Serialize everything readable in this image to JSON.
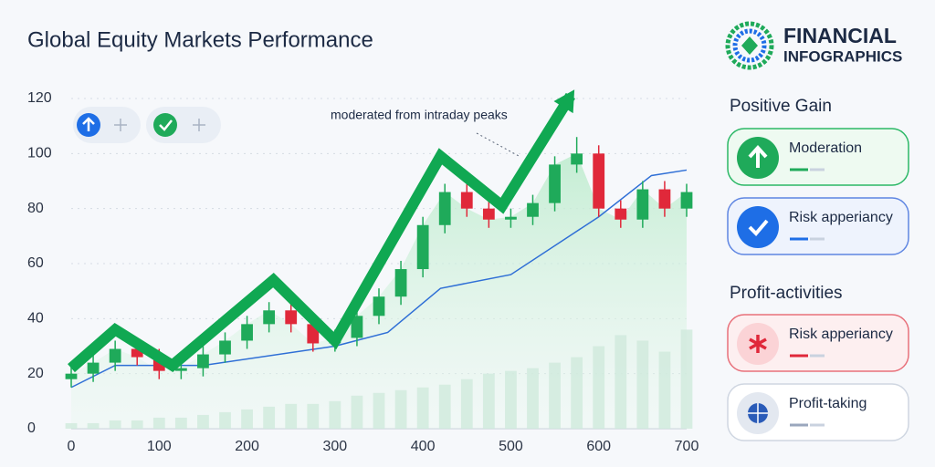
{
  "chart_data": {
    "type": "candlestick",
    "title": "Global Equity Markets Performance",
    "annotation": "moderated from intraday peaks",
    "x": [
      0,
      25,
      50,
      75,
      100,
      125,
      150,
      175,
      200,
      225,
      250,
      275,
      300,
      325,
      350,
      375,
      400,
      425,
      450,
      475,
      500,
      525,
      550,
      575,
      600,
      625,
      650,
      675,
      700
    ],
    "open": [
      18,
      20,
      24,
      29,
      26,
      21,
      22,
      27,
      32,
      38,
      43,
      38,
      31,
      33,
      41,
      48,
      58,
      74,
      86,
      80,
      76,
      77,
      82,
      96,
      100,
      80,
      76,
      87,
      80
    ],
    "high": [
      23,
      27,
      32,
      32,
      29,
      25,
      30,
      35,
      41,
      46,
      46,
      41,
      36,
      44,
      51,
      61,
      77,
      89,
      89,
      83,
      80,
      85,
      99,
      106,
      103,
      83,
      90,
      90,
      89
    ],
    "low": [
      15,
      17,
      21,
      23,
      18,
      18,
      19,
      24,
      29,
      35,
      35,
      28,
      28,
      30,
      38,
      45,
      55,
      71,
      77,
      73,
      73,
      74,
      79,
      93,
      77,
      73,
      73,
      77,
      77
    ],
    "close": [
      20,
      24,
      29,
      26,
      21,
      22,
      27,
      32,
      38,
      43,
      38,
      31,
      33,
      41,
      48,
      58,
      74,
      86,
      80,
      76,
      77,
      82,
      96,
      100,
      80,
      76,
      87,
      80,
      86
    ],
    "volume": [
      2,
      2,
      3,
      3,
      4,
      4,
      5,
      6,
      7,
      8,
      9,
      9,
      10,
      12,
      13,
      14,
      15,
      16,
      18,
      20,
      21,
      22,
      24,
      26,
      30,
      34,
      32,
      28,
      36
    ],
    "up_color": "#1faa5a",
    "down_color": "#e0283a",
    "volume_color": "#cfeadc",
    "trend": {
      "color": "#10a852",
      "x": [
        0,
        50,
        115,
        230,
        300,
        420,
        490,
        568
      ],
      "values": [
        22,
        36,
        23,
        54,
        32,
        99,
        81,
        121
      ]
    },
    "average": {
      "color": "#2f6fd6",
      "x": [
        0,
        50,
        150,
        300,
        360,
        420,
        500,
        600,
        660,
        700
      ],
      "values": [
        15,
        23,
        23,
        30,
        35,
        51,
        56,
        77,
        92,
        94
      ]
    },
    "xlim": [
      0,
      700
    ],
    "ylim": [
      0,
      120
    ],
    "xticks": [
      0,
      100,
      200,
      300,
      400,
      500,
      600,
      700
    ],
    "yticks": [
      0,
      20,
      40,
      60,
      80,
      100,
      120
    ],
    "grid": true
  },
  "sidebar": {
    "logo": [
      "FINANCIAL",
      "INFOGRAPHICS"
    ],
    "sections": [
      {
        "title": "Positive Gain",
        "cards": [
          "Moderation",
          "Risk apperiancy"
        ]
      },
      {
        "title": "Profit-activities",
        "cards": [
          "Risk apperiancy",
          "Profit-taking"
        ]
      }
    ]
  }
}
